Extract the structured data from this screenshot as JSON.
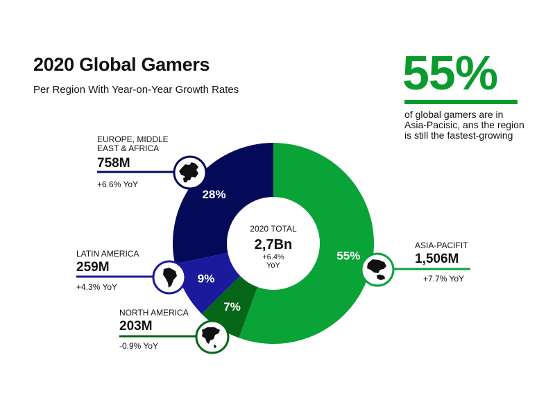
{
  "header": {
    "title": "2020 Global Gamers",
    "subtitle": "Per Region With Year-on-Year Growth Rates"
  },
  "highlight": {
    "value": "55%",
    "text": "of global gamers are in Asia-Pacisic, ans the region is still the fastest-growing",
    "color": "#0a9b2e"
  },
  "center": {
    "label": "2020 TOTAL",
    "value": "2,7Bn",
    "growth": "+6.4%",
    "growth_unit": "YoY"
  },
  "chart_data": {
    "type": "pie",
    "title": "2020 Global Gamers",
    "subtitle": "Per Region With Year-on-Year Growth Rates",
    "total": "2,7Bn",
    "total_growth": "+6.4% YoY",
    "slices": [
      {
        "name": "ASIA-PACIFIT",
        "share": 55,
        "share_label": "55%",
        "players": "1,506M",
        "yoy": "+7.7% YoY",
        "color": "#0aa337",
        "icon": "asia-globe-icon"
      },
      {
        "name": "NORTH AMERICA",
        "share": 7,
        "share_label": "7%",
        "players": "203M",
        "yoy": "-0.9% YoY",
        "color": "#056617",
        "icon": "north-america-globe-icon"
      },
      {
        "name": "LATIN AMERICA",
        "share": 9,
        "share_label": "9%",
        "players": "259M",
        "yoy": "+4.3% YoY",
        "color": "#1b1a9c",
        "icon": "south-america-globe-icon"
      },
      {
        "name": "EUROPE, MIDDLE EAST & AFRICA",
        "share": 28,
        "share_label": "28%",
        "players": "758M",
        "yoy": "+6.6% YoY",
        "color": "#050a58",
        "icon": "europe-globe-icon"
      }
    ]
  },
  "regions": {
    "emea": {
      "name_line1": "EUROPE, MIDDLE",
      "name_line2": "EAST & AFRICA",
      "value": "758M",
      "yoy": "+6.6% YoY"
    },
    "latam": {
      "name": "LATIN AMERICA",
      "value": "259M",
      "yoy": "+4.3% YoY"
    },
    "na": {
      "name": "NORTH AMERICA",
      "value": "203M",
      "yoy": "-0.9% YoY"
    },
    "apac": {
      "name": "ASIA-PACIFIT",
      "value": "1,506M",
      "yoy": "+7.7% YoY"
    }
  }
}
